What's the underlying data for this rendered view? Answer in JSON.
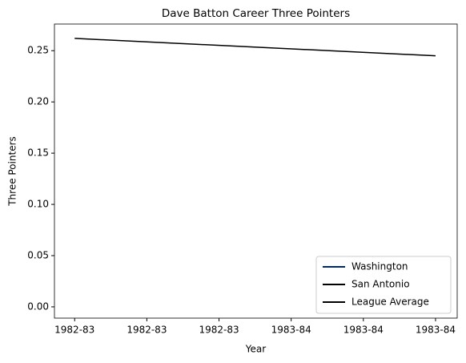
{
  "chart_data": {
    "type": "line",
    "title": "Dave Batton Career Three Pointers",
    "xlabel": "Year",
    "ylabel": "Three Pointers",
    "xlim": [
      -0.28,
      5.3
    ],
    "xticks": [
      {
        "value": 0,
        "label": "1982-83"
      },
      {
        "value": 1,
        "label": "1982-83"
      },
      {
        "value": 2,
        "label": "1982-83"
      },
      {
        "value": 3,
        "label": "1983-84"
      },
      {
        "value": 4,
        "label": "1983-84"
      },
      {
        "value": 5,
        "label": "1983-84"
      }
    ],
    "ylim": [
      -0.011,
      0.276
    ],
    "yticks": [
      {
        "value": 0,
        "label": "0.00"
      },
      {
        "value": 0.05,
        "label": "0.05"
      },
      {
        "value": 0.1,
        "label": "0.10"
      },
      {
        "value": 0.15,
        "label": "0.15"
      },
      {
        "value": 0.2,
        "label": "0.20"
      },
      {
        "value": 0.25,
        "label": "0.25"
      }
    ],
    "legend": "lower right",
    "series": [
      {
        "name": "Washington",
        "color": "#002b5c",
        "x": [],
        "values": []
      },
      {
        "name": "San Antonio",
        "color": "#000000",
        "x": [],
        "values": []
      },
      {
        "name": "League Average",
        "color": "#000000",
        "x": [
          0,
          5
        ],
        "values": [
          0.262,
          0.245
        ]
      }
    ]
  }
}
